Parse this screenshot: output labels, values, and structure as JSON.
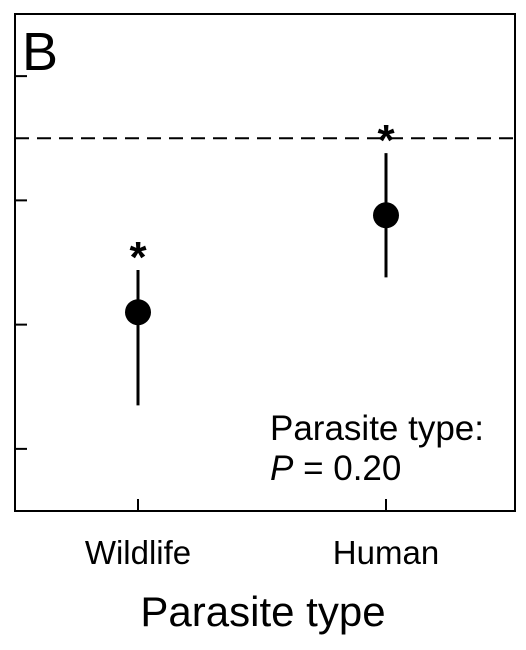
{
  "chart_data": {
    "type": "scatter",
    "panel_label": "B",
    "xlabel": "Parasite type",
    "ylabel": "",
    "categories": [
      "Wildlife",
      "Human"
    ],
    "series": [
      {
        "values": [
          0.6,
          1.38
        ],
        "error_low": [
          -0.15,
          0.88
        ],
        "error_high": [
          0.94,
          1.88
        ],
        "markers": [
          "*",
          "*"
        ]
      }
    ],
    "ylim": [
      -1.0,
      3.0
    ],
    "yticks": [
      -0.5,
      0.5,
      1.5,
      2.5
    ],
    "reference_line": 2.0,
    "reference_style": "dashed",
    "annotation": {
      "line1": "Parasite type:",
      "stat_symbol": "P",
      "stat_rest": " = 0.20"
    },
    "grid": false,
    "legend": "none"
  }
}
